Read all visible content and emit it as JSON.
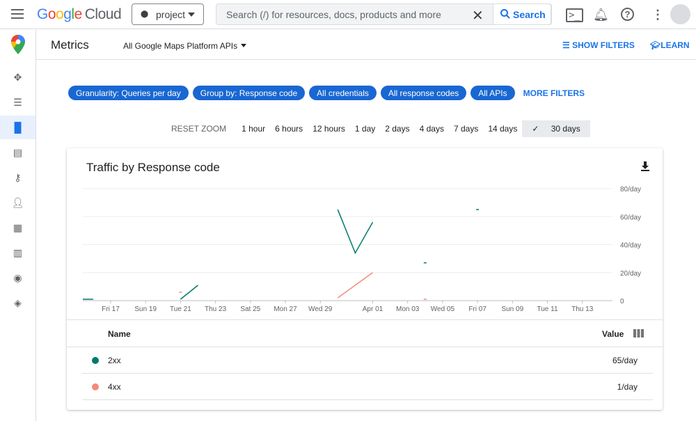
{
  "topbar": {
    "logo": "Google Cloud",
    "project": "project",
    "search_placeholder": "Search (/) for resources, docs, products and more",
    "search_button": "Search"
  },
  "sidebar": {
    "icons": [
      "pin-icon",
      "list-icon",
      "bar-chart-icon",
      "quota-icon",
      "key-icon",
      "person-icon",
      "widgets-icon",
      "map-icon",
      "palette-icon",
      "layers-icon"
    ],
    "active": 2
  },
  "subbar": {
    "title": "Metrics",
    "api_select": "All Google Maps Platform APIs",
    "show_filters": "SHOW FILTERS",
    "learn": "LEARN"
  },
  "filters": {
    "chips": [
      "Granularity: Queries per day",
      "Group by: Response code",
      "All credentials",
      "All response codes",
      "All APIs"
    ],
    "more": "MORE FILTERS"
  },
  "zoom": {
    "reset": "RESET ZOOM",
    "options": [
      "1 hour",
      "6 hours",
      "12 hours",
      "1 day",
      "2 days",
      "4 days",
      "7 days",
      "14 days",
      "30 days"
    ],
    "selected": "30 days"
  },
  "card": {
    "title": "Traffic by Response code",
    "table": {
      "headers": [
        "Name",
        "Value"
      ],
      "rows": [
        {
          "name": "2xx",
          "value": "65/day",
          "color": "#00796b"
        },
        {
          "name": "4xx",
          "value": "1/day",
          "color": "#f28b79"
        }
      ]
    }
  },
  "chart_data": {
    "type": "line",
    "title": "Traffic by Response code",
    "ylim": [
      0,
      80
    ],
    "y_ticks": [
      "0",
      "20/day",
      "40/day",
      "60/day",
      "80/day"
    ],
    "x_ticks": [
      "Fri 17",
      "Sun 19",
      "Tue 21",
      "Thu 23",
      "Sat 25",
      "Mon 27",
      "Wed 29",
      "Apr 01",
      "Mon 03",
      "Wed 05",
      "Fri 07",
      "Sun 09",
      "Tue 11",
      "Thu 13"
    ],
    "grid": true,
    "legend": "table-below",
    "series": [
      {
        "name": "2xx",
        "color": "#00796b",
        "segments": [
          [
            [
              "Mar 15",
              1
            ],
            [
              "Mar 16",
              1
            ]
          ],
          [
            [
              "Mar 21",
              1
            ],
            [
              "Mar 22",
              11
            ]
          ],
          [
            [
              "Mar 30",
              65
            ],
            [
              "Mar 31",
              34
            ],
            [
              "Apr 01",
              56
            ]
          ],
          [
            [
              "Apr 04",
              27
            ]
          ],
          [
            [
              "Apr 07",
              65
            ]
          ]
        ]
      },
      {
        "name": "4xx",
        "color": "#f28b79",
        "segments": [
          [
            [
              "Mar 21",
              6
            ]
          ],
          [
            [
              "Mar 30",
              2
            ],
            [
              "Apr 01",
              20
            ]
          ],
          [
            [
              "Apr 04",
              1
            ]
          ]
        ]
      }
    ]
  }
}
